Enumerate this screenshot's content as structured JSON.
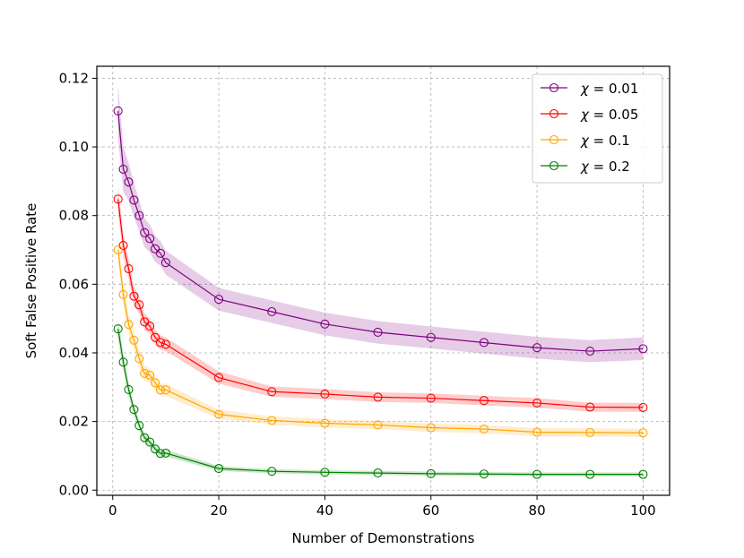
{
  "chart_data": {
    "type": "line",
    "title": "",
    "xlabel": "Number of Demonstrations",
    "ylabel": "Soft False Positive Rate",
    "xlim": [
      -3,
      105
    ],
    "ylim": [
      -0.0015,
      0.1235
    ],
    "xticks": [
      0,
      20,
      40,
      60,
      80,
      100
    ],
    "xtick_labels": [
      "0",
      "20",
      "40",
      "60",
      "80",
      "100"
    ],
    "yticks": [
      0.0,
      0.02,
      0.04,
      0.06,
      0.08,
      0.1,
      0.12
    ],
    "ytick_labels": [
      "0.00",
      "0.02",
      "0.04",
      "0.06",
      "0.08",
      "0.10",
      "0.12"
    ],
    "grid": true,
    "legend_position": "top-right",
    "x": [
      1,
      2,
      3,
      4,
      5,
      6,
      7,
      8,
      9,
      10,
      20,
      30,
      40,
      50,
      60,
      70,
      80,
      90,
      100
    ],
    "series": [
      {
        "name": "χ = 0.01",
        "legend_symbol": "χ",
        "legend_value": "0.01",
        "color": "#800080",
        "values": [
          0.1105,
          0.0935,
          0.0898,
          0.0845,
          0.08,
          0.075,
          0.0733,
          0.0703,
          0.069,
          0.0663,
          0.0556,
          0.052,
          0.0484,
          0.046,
          0.0445,
          0.043,
          0.0415,
          0.0405,
          0.0412
        ],
        "band": [
          0.0075,
          0.0065,
          0.0055,
          0.005,
          0.0045,
          0.0042,
          0.004,
          0.0038,
          0.0036,
          0.0035,
          0.0033,
          0.0033,
          0.0033,
          0.0033,
          0.0032,
          0.0032,
          0.0032,
          0.0032,
          0.0033
        ]
      },
      {
        "name": "χ = 0.05",
        "legend_symbol": "χ",
        "legend_value": "0.05",
        "color": "#ff0000",
        "values": [
          0.0848,
          0.0713,
          0.0645,
          0.0565,
          0.054,
          0.049,
          0.0478,
          0.0445,
          0.043,
          0.0425,
          0.0328,
          0.0287,
          0.028,
          0.0271,
          0.0268,
          0.0261,
          0.0254,
          0.0242,
          0.0241
        ],
        "band": [
          0.004,
          0.0035,
          0.003,
          0.0028,
          0.0026,
          0.0024,
          0.0023,
          0.0022,
          0.0021,
          0.002,
          0.0018,
          0.0015,
          0.0015,
          0.0014,
          0.0014,
          0.0014,
          0.0014,
          0.0013,
          0.0013
        ]
      },
      {
        "name": "χ = 0.1",
        "legend_symbol": "χ",
        "legend_value": "0.1",
        "color": "#ffa500",
        "values": [
          0.07,
          0.057,
          0.0483,
          0.0437,
          0.0383,
          0.034,
          0.0335,
          0.0313,
          0.0292,
          0.0292,
          0.0221,
          0.0203,
          0.0195,
          0.019,
          0.0182,
          0.0178,
          0.0169,
          0.0168,
          0.0167
        ],
        "band": [
          0.004,
          0.0035,
          0.003,
          0.0026,
          0.0024,
          0.0022,
          0.0021,
          0.002,
          0.0019,
          0.0018,
          0.0013,
          0.0012,
          0.0012,
          0.0012,
          0.0012,
          0.0012,
          0.0012,
          0.0012,
          0.0012
        ]
      },
      {
        "name": "χ = 0.2",
        "legend_symbol": "χ",
        "legend_value": "0.2",
        "color": "#008000",
        "values": [
          0.047,
          0.0373,
          0.0293,
          0.0235,
          0.0188,
          0.0153,
          0.014,
          0.012,
          0.0107,
          0.0108,
          0.0063,
          0.0055,
          0.0052,
          0.005,
          0.0048,
          0.0047,
          0.0046,
          0.0046,
          0.0046
        ],
        "band": [
          0.003,
          0.0025,
          0.002,
          0.0017,
          0.0015,
          0.0013,
          0.0012,
          0.0011,
          0.001,
          0.001,
          0.0007,
          0.0006,
          0.0006,
          0.0006,
          0.0006,
          0.0006,
          0.0006,
          0.0006,
          0.0006
        ]
      }
    ]
  }
}
